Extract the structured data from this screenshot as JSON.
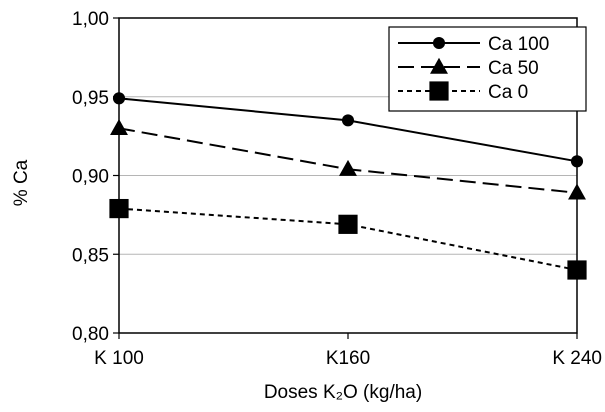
{
  "chart_data": {
    "type": "line",
    "categories": [
      "K 100",
      "K160",
      "K 240"
    ],
    "xlabel": "Doses K₂O (kg/ha)",
    "ylabel": "% Ca",
    "ylim": [
      0.8,
      1.0
    ],
    "yticks": [
      0.8,
      0.85,
      0.9,
      0.95,
      1.0
    ],
    "ytick_labels": [
      "0,80",
      "0,85",
      "0,90",
      "0,95",
      "1,00"
    ],
    "grid": true,
    "legend": "top-right",
    "series": [
      {
        "name": "Ca 100",
        "values": [
          0.949,
          0.935,
          0.909
        ],
        "line": "solid",
        "marker": "circle",
        "color": "#000000"
      },
      {
        "name": "Ca 50",
        "values": [
          0.93,
          0.904,
          0.889
        ],
        "line": "dashed",
        "marker": "triangle",
        "color": "#000000"
      },
      {
        "name": "Ca 0",
        "values": [
          0.879,
          0.869,
          0.84
        ],
        "line": "dotted",
        "marker": "square",
        "color": "#000000"
      }
    ]
  }
}
